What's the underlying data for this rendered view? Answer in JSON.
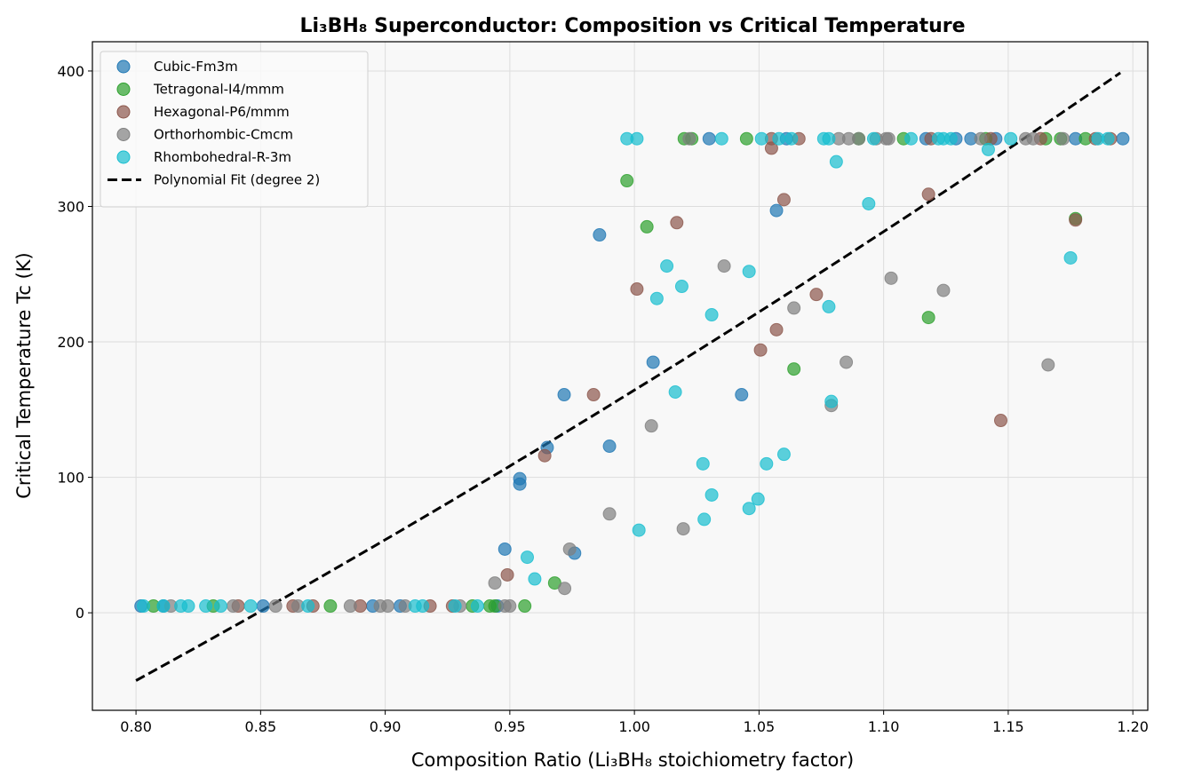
{
  "chart_data": {
    "type": "scatter",
    "title": "Li₃BH₈ Superconductor: Composition vs Critical Temperature",
    "xlabel": "Composition Ratio (Li₃BH₈ stoichiometry factor)",
    "ylabel": "Critical Temperature Tc (K)",
    "xlim": [
      0.7825,
      1.206
    ],
    "ylim": [
      -72,
      421.6
    ],
    "xticks": [
      0.8,
      0.85,
      0.9,
      0.95,
      1.0,
      1.05,
      1.1,
      1.15,
      1.2
    ],
    "xtick_labels": [
      "0.80",
      "0.85",
      "0.90",
      "0.95",
      "1.00",
      "1.05",
      "1.10",
      "1.15",
      "1.20"
    ],
    "yticks": [
      0,
      100,
      200,
      300,
      400
    ],
    "ytick_labels": [
      "0",
      "100",
      "200",
      "300",
      "400"
    ],
    "grid": true,
    "legend_position": "top-left",
    "background": "#f8f8f8",
    "series": [
      {
        "name": "Cubic-Fm3m",
        "color": "#1f77b4",
        "points": [
          [
            0.802,
            5
          ],
          [
            0.811,
            5
          ],
          [
            0.851,
            5
          ],
          [
            0.895,
            5
          ],
          [
            0.906,
            5
          ],
          [
            0.945,
            5
          ],
          [
            1.03,
            350
          ],
          [
            1.061,
            350
          ],
          [
            1.117,
            350
          ],
          [
            1.129,
            350
          ],
          [
            1.135,
            350
          ],
          [
            1.145,
            350
          ],
          [
            1.177,
            350
          ],
          [
            1.196,
            350
          ],
          [
            1.057,
            297
          ],
          [
            0.986,
            279
          ],
          [
            0.9718,
            161
          ],
          [
            1.0075,
            185
          ],
          [
            1.043,
            161
          ],
          [
            0.965,
            122
          ],
          [
            0.954,
            99
          ],
          [
            0.954,
            95
          ],
          [
            0.99,
            123
          ],
          [
            0.948,
            47
          ],
          [
            0.976,
            44
          ]
        ]
      },
      {
        "name": "Tetragonal-I4/mmm",
        "color": "#2ca02c",
        "points": [
          [
            0.807,
            5
          ],
          [
            0.831,
            5
          ],
          [
            0.878,
            5
          ],
          [
            0.935,
            5
          ],
          [
            0.942,
            5
          ],
          [
            0.944,
            5
          ],
          [
            0.956,
            5
          ],
          [
            1.02,
            350
          ],
          [
            1.023,
            350
          ],
          [
            1.045,
            350
          ],
          [
            1.09,
            350
          ],
          [
            1.108,
            350
          ],
          [
            1.141,
            350
          ],
          [
            1.165,
            350
          ],
          [
            1.171,
            350
          ],
          [
            1.181,
            350
          ],
          [
            0.997,
            319
          ],
          [
            1.005,
            285
          ],
          [
            1.177,
            291
          ],
          [
            1.118,
            218
          ],
          [
            1.064,
            180
          ],
          [
            0.968,
            22
          ]
        ]
      },
      {
        "name": "Hexagonal-P6/mmm",
        "color": "#8c564b",
        "points": [
          [
            0.841,
            5
          ],
          [
            0.863,
            5
          ],
          [
            0.871,
            5
          ],
          [
            0.89,
            5
          ],
          [
            0.918,
            5
          ],
          [
            0.927,
            5
          ],
          [
            1.055,
            350
          ],
          [
            1.066,
            350
          ],
          [
            1.119,
            350
          ],
          [
            1.143,
            350
          ],
          [
            1.163,
            350
          ],
          [
            1.185,
            350
          ],
          [
            1.191,
            350
          ],
          [
            1.055,
            343
          ],
          [
            1.06,
            305
          ],
          [
            1.017,
            288
          ],
          [
            1.118,
            309
          ],
          [
            1.177,
            290
          ],
          [
            1.001,
            239
          ],
          [
            1.073,
            235
          ],
          [
            1.057,
            209
          ],
          [
            1.0506,
            194
          ],
          [
            0.9836,
            161
          ],
          [
            1.147,
            142
          ],
          [
            0.964,
            116
          ],
          [
            0.949,
            28
          ]
        ]
      },
      {
        "name": "Orthorhombic-Cmcm",
        "color": "#7f7f7f",
        "points": [
          [
            0.814,
            5
          ],
          [
            0.839,
            5
          ],
          [
            0.856,
            5
          ],
          [
            0.865,
            5
          ],
          [
            0.886,
            5
          ],
          [
            0.898,
            5
          ],
          [
            0.901,
            5
          ],
          [
            0.908,
            5
          ],
          [
            0.93,
            5
          ],
          [
            0.948,
            5
          ],
          [
            0.95,
            5
          ],
          [
            1.022,
            350
          ],
          [
            1.082,
            350
          ],
          [
            1.086,
            350
          ],
          [
            1.09,
            350
          ],
          [
            1.097,
            350
          ],
          [
            1.101,
            350
          ],
          [
            1.102,
            350
          ],
          [
            1.139,
            350
          ],
          [
            1.157,
            350
          ],
          [
            1.16,
            350
          ],
          [
            1.172,
            350
          ],
          [
            1.036,
            256
          ],
          [
            1.103,
            247
          ],
          [
            1.124,
            238
          ],
          [
            1.064,
            225
          ],
          [
            1.085,
            185
          ],
          [
            1.166,
            183
          ],
          [
            1.079,
            153
          ],
          [
            1.0068,
            138
          ],
          [
            0.99,
            73
          ],
          [
            1.0196,
            62
          ],
          [
            0.974,
            47
          ],
          [
            0.944,
            22
          ],
          [
            0.972,
            18
          ]
        ]
      },
      {
        "name": "Rhombohedral-R-3m",
        "color": "#17becf",
        "points": [
          [
            0.803,
            5
          ],
          [
            0.811,
            5
          ],
          [
            0.818,
            5
          ],
          [
            0.821,
            5
          ],
          [
            0.828,
            5
          ],
          [
            0.834,
            5
          ],
          [
            0.846,
            5
          ],
          [
            0.869,
            5
          ],
          [
            0.912,
            5
          ],
          [
            0.915,
            5
          ],
          [
            0.928,
            5
          ],
          [
            0.937,
            5
          ],
          [
            0.997,
            350
          ],
          [
            1.001,
            350
          ],
          [
            1.035,
            350
          ],
          [
            1.051,
            350
          ],
          [
            1.058,
            350
          ],
          [
            1.063,
            350
          ],
          [
            1.076,
            350
          ],
          [
            1.078,
            350
          ],
          [
            1.096,
            350
          ],
          [
            1.111,
            350
          ],
          [
            1.122,
            350
          ],
          [
            1.124,
            350
          ],
          [
            1.127,
            350
          ],
          [
            1.151,
            350
          ],
          [
            1.186,
            350
          ],
          [
            1.19,
            350
          ],
          [
            1.081,
            333
          ],
          [
            1.142,
            342
          ],
          [
            1.094,
            302
          ],
          [
            1.013,
            256
          ],
          [
            1.046,
            252
          ],
          [
            1.019,
            241
          ],
          [
            1.009,
            232
          ],
          [
            1.078,
            226
          ],
          [
            1.031,
            220
          ],
          [
            1.175,
            262
          ],
          [
            1.0164,
            163
          ],
          [
            1.079,
            156
          ],
          [
            1.0275,
            110
          ],
          [
            1.053,
            110
          ],
          [
            1.06,
            117
          ],
          [
            1.031,
            87
          ],
          [
            1.0496,
            84
          ],
          [
            1.046,
            77
          ],
          [
            1.028,
            69
          ],
          [
            1.0018,
            61
          ],
          [
            0.957,
            41
          ],
          [
            0.96,
            25
          ]
        ]
      }
    ],
    "fit": {
      "name": "Polynomial Fit (degree 2)",
      "color": "#000000",
      "style": "dashed",
      "degree": 2,
      "coefficients": [
        327,
        483.5,
        -646.1
      ],
      "x_range": [
        0.8,
        1.195
      ]
    }
  }
}
